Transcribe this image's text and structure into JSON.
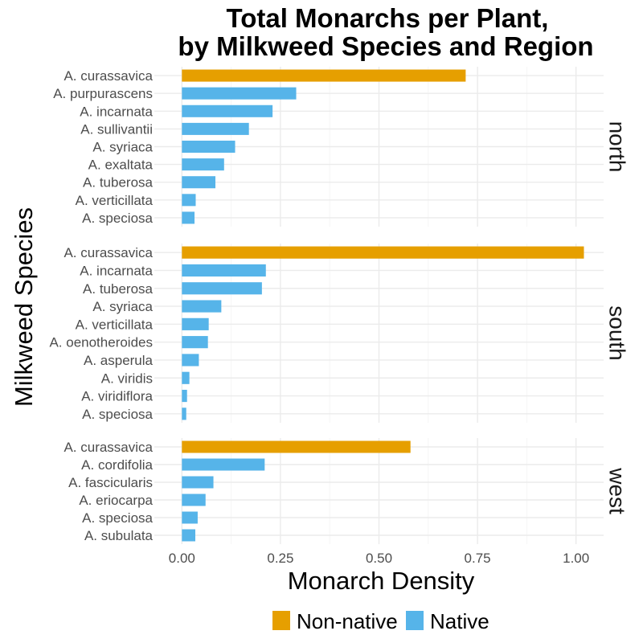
{
  "chart_data": {
    "type": "bar",
    "orientation": "horizontal",
    "title": "Total Monarchs per Plant,",
    "subtitle": "by Milkweed Species and Region",
    "xlabel": "Monarch Density",
    "ylabel": "Milkweed Species",
    "xlim": [
      -0.07,
      1.07
    ],
    "x_ticks": [
      "0.00",
      "0.25",
      "0.50",
      "0.75",
      "1.00"
    ],
    "x_tick_values": [
      0,
      0.25,
      0.5,
      0.75,
      1.0
    ],
    "grid": true,
    "legend": {
      "placement": "bottom",
      "entries": [
        {
          "label": "Non-native",
          "color": "#E69F00"
        },
        {
          "label": "Native",
          "color": "#56B4E9"
        }
      ]
    },
    "panels": [
      {
        "region": "north",
        "bars": [
          {
            "species": "A. curassavica",
            "value": 0.72,
            "group": "Non-native"
          },
          {
            "species": "A. purpurascens",
            "value": 0.29,
            "group": "Native"
          },
          {
            "species": "A. incarnata",
            "value": 0.23,
            "group": "Native"
          },
          {
            "species": "A. sullivantii",
            "value": 0.17,
            "group": "Native"
          },
          {
            "species": "A. syriaca",
            "value": 0.135,
            "group": "Native"
          },
          {
            "species": "A. exaltata",
            "value": 0.107,
            "group": "Native"
          },
          {
            "species": "A. tuberosa",
            "value": 0.085,
            "group": "Native"
          },
          {
            "species": "A. verticillata",
            "value": 0.035,
            "group": "Native"
          },
          {
            "species": "A. speciosa",
            "value": 0.032,
            "group": "Native"
          }
        ]
      },
      {
        "region": "south",
        "bars": [
          {
            "species": "A. curassavica",
            "value": 1.02,
            "group": "Non-native"
          },
          {
            "species": "A. incarnata",
            "value": 0.213,
            "group": "Native"
          },
          {
            "species": "A. tuberosa",
            "value": 0.203,
            "group": "Native"
          },
          {
            "species": "A. syriaca",
            "value": 0.1,
            "group": "Native"
          },
          {
            "species": "A. verticillata",
            "value": 0.068,
            "group": "Native"
          },
          {
            "species": "A. oenotheroides",
            "value": 0.066,
            "group": "Native"
          },
          {
            "species": "A. asperula",
            "value": 0.043,
            "group": "Native"
          },
          {
            "species": "A. viridis",
            "value": 0.019,
            "group": "Native"
          },
          {
            "species": "A. viridiflora",
            "value": 0.013,
            "group": "Native"
          },
          {
            "species": "A. speciosa",
            "value": 0.011,
            "group": "Native"
          }
        ]
      },
      {
        "region": "west",
        "bars": [
          {
            "species": "A. curassavica",
            "value": 0.58,
            "group": "Non-native"
          },
          {
            "species": "A. cordifolia",
            "value": 0.21,
            "group": "Native"
          },
          {
            "species": "A. fascicularis",
            "value": 0.08,
            "group": "Native"
          },
          {
            "species": "A. eriocarpa",
            "value": 0.06,
            "group": "Native"
          },
          {
            "species": "A. speciosa",
            "value": 0.04,
            "group": "Native"
          },
          {
            "species": "A. subulata",
            "value": 0.034,
            "group": "Native"
          }
        ]
      }
    ]
  }
}
